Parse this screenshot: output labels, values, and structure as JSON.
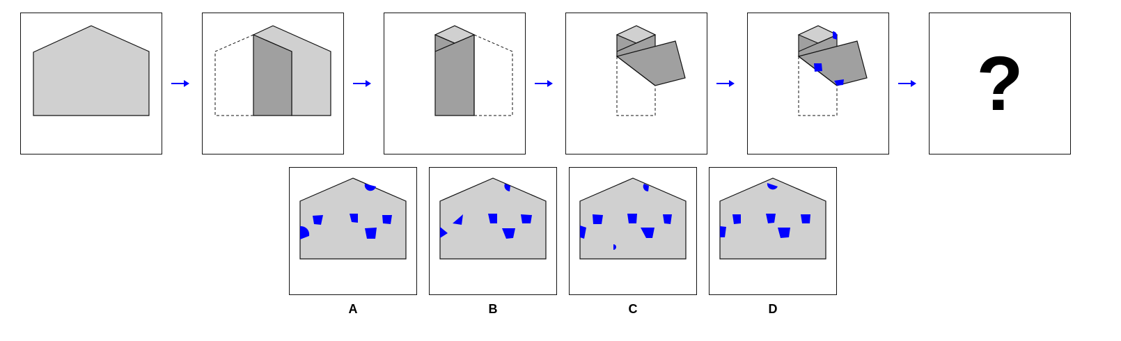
{
  "sequence": {
    "question_mark": "?"
  },
  "options": {
    "a": "A",
    "b": "B",
    "c": "C",
    "d": "D"
  },
  "colors": {
    "paper": "#d0d0d0",
    "paper_folded": "#a0a0a0",
    "hole": "#0000ff",
    "arrow": "#0000ff",
    "outline": "#111111"
  },
  "icons": {
    "arrow": "right-arrow-icon"
  }
}
